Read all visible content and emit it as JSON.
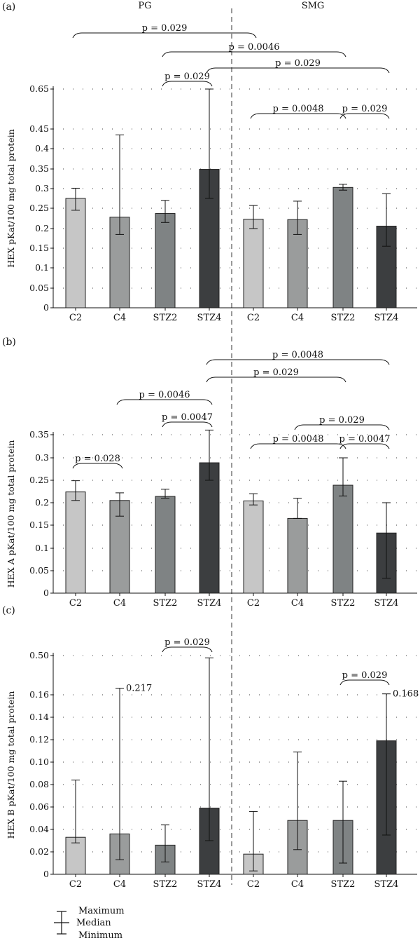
{
  "group_labels": {
    "left": "PG",
    "right": "SMG"
  },
  "legend": {
    "maximum": "Maximum",
    "median": "Median",
    "minimum": "Minimum"
  },
  "colors": {
    "C2": "#c6c6c6",
    "C4": "#9a9c9c",
    "STZ2": "#7f8384",
    "STZ4": "#3c3e40",
    "axis": "#111111"
  },
  "chart_data": [
    {
      "panel": "(a)",
      "type": "bar",
      "ylabel": "HEX pKat/100 mg total protein",
      "categories": [
        "C2",
        "C4",
        "STZ2",
        "STZ4",
        "C2",
        "C4",
        "STZ2",
        "STZ4"
      ],
      "yticks": [
        "0",
        "0.05",
        "0.1",
        "0.15",
        "0.2",
        "0.25",
        "0.3",
        "0.35",
        "0.4",
        "0.45",
        "0.65"
      ],
      "ylim": [
        0,
        0.65
      ],
      "axis_break": "0.45 to 0.65",
      "grid": true,
      "median": [
        0.275,
        0.228,
        0.237,
        0.349,
        0.223,
        0.222,
        0.303,
        0.206
      ],
      "min": [
        0.245,
        0.185,
        0.215,
        0.275,
        0.2,
        0.185,
        0.296,
        0.155
      ],
      "max": [
        0.301,
        0.435,
        0.27,
        0.65,
        0.257,
        0.268,
        0.311,
        0.287
      ],
      "comparisons": [
        {
          "from": 0,
          "to": 4,
          "label": "p = 0.029"
        },
        {
          "from": 2,
          "to": 6,
          "label": "p = 0.0046"
        },
        {
          "from": 3,
          "to": 7,
          "label": "p = 0.029"
        },
        {
          "from": 2,
          "to": 3,
          "label": "p = 0.029"
        },
        {
          "from": 4,
          "to": 6,
          "label": "p = 0.0048"
        },
        {
          "from": 6,
          "to": 7,
          "label": "p = 0.029"
        }
      ]
    },
    {
      "panel": "(b)",
      "type": "bar",
      "ylabel": "HEX A pKat/100 mg total protein",
      "categories": [
        "C2",
        "C4",
        "STZ2",
        "STZ4",
        "C2",
        "C4",
        "STZ2",
        "STZ4"
      ],
      "yticks": [
        "0",
        "0.05",
        "0.1",
        "0.15",
        "0.2",
        "0.25",
        "0.3",
        "0.35"
      ],
      "ylim": [
        0,
        0.35
      ],
      "grid": true,
      "median": [
        0.224,
        0.205,
        0.214,
        0.289,
        0.204,
        0.165,
        0.239,
        0.133
      ],
      "min": [
        0.205,
        0.17,
        0.21,
        0.25,
        0.195,
        0.165,
        0.215,
        0.033
      ],
      "max": [
        0.249,
        0.222,
        0.23,
        0.36,
        0.22,
        0.21,
        0.3,
        0.2
      ],
      "comparisons": [
        {
          "from": 3,
          "to": 7,
          "label": "p = 0.0048"
        },
        {
          "from": 3,
          "to": 6,
          "label": "p = 0.029"
        },
        {
          "from": 1,
          "to": 3,
          "label": "p = 0.0046"
        },
        {
          "from": 2,
          "to": 3,
          "label": "p = 0.0047"
        },
        {
          "from": 0,
          "to": 1,
          "label": "p = 0.028"
        },
        {
          "from": 5,
          "to": 7,
          "label": "p = 0.029"
        },
        {
          "from": 4,
          "to": 6,
          "label": "p = 0.0048"
        },
        {
          "from": 6,
          "to": 7,
          "label": "p = 0.0047"
        }
      ]
    },
    {
      "panel": "(c)",
      "type": "bar",
      "ylabel": "HEX B pKat/100 mg total protein",
      "categories": [
        "C2",
        "C4",
        "STZ2",
        "STZ4",
        "C2",
        "C4",
        "STZ2",
        "STZ4"
      ],
      "yticks": [
        "0",
        "0.02",
        "0.04",
        "0.06",
        "0.08",
        "0.10",
        "0.12",
        "0.14",
        "0.16",
        "0.50"
      ],
      "ylim": [
        0,
        0.5
      ],
      "axis_break": "0.16 to 0.50",
      "grid": true,
      "median": [
        0.033,
        0.036,
        0.026,
        0.059,
        0.018,
        0.048,
        0.048,
        0.119
      ],
      "min": [
        0.028,
        0.013,
        0.011,
        0.03,
        0.003,
        0.022,
        0.01,
        0.035
      ],
      "max": [
        0.084,
        0.217,
        0.044,
        0.48,
        0.056,
        0.109,
        0.083,
        0.168
      ],
      "annotations": [
        {
          "bar": 1,
          "text": "0.217"
        },
        {
          "bar": 7,
          "text": "0.168"
        }
      ],
      "comparisons": [
        {
          "from": 2,
          "to": 3,
          "label": "p = 0.029"
        },
        {
          "from": 6,
          "to": 7,
          "label": "p = 0.029"
        }
      ]
    }
  ]
}
